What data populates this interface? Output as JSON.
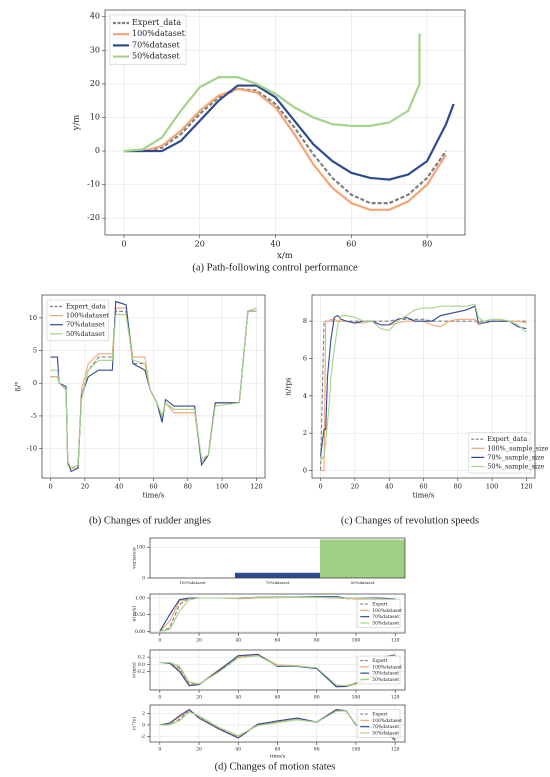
{
  "chart_data": [
    {
      "type": "line",
      "xlabel": "x/m",
      "ylabel": "y/m",
      "caption": "(a) Path-following control performance",
      "xlim": [
        -5,
        90
      ],
      "ylim": [
        -25,
        42
      ],
      "xticks": [
        0,
        20,
        40,
        60,
        80
      ],
      "yticks": [
        -20,
        -10,
        0,
        10,
        20,
        30,
        40
      ],
      "grid": true,
      "legend": "upper left",
      "series": [
        {
          "name": "Expert_data",
          "color": "#7f7f7f",
          "linestyle": "dashed",
          "x": [
            0,
            5,
            10,
            15,
            20,
            25,
            30,
            35,
            40,
            45,
            50,
            55,
            60,
            65,
            70,
            75,
            80,
            85
          ],
          "values": [
            0,
            0,
            1,
            5,
            11,
            16,
            18.5,
            18,
            14,
            7,
            -1,
            -8,
            -13,
            -15.5,
            -15.5,
            -13,
            -8,
            0
          ]
        },
        {
          "name": "100%dataset",
          "color": "#f4a574",
          "linestyle": "solid",
          "x": [
            0,
            5,
            10,
            15,
            20,
            25,
            30,
            35,
            40,
            45,
            50,
            55,
            60,
            65,
            70,
            75,
            80,
            85
          ],
          "values": [
            0,
            0,
            1.5,
            6,
            12,
            16.5,
            18.5,
            17.5,
            13,
            5,
            -4,
            -11,
            -15.5,
            -17.5,
            -17.5,
            -15,
            -10,
            -1
          ]
        },
        {
          "name": "70%dataset",
          "color": "#2f4b8f",
          "linestyle": "solid",
          "x": [
            0,
            5,
            10,
            15,
            20,
            25,
            30,
            35,
            40,
            45,
            50,
            55,
            60,
            65,
            70,
            75,
            80,
            85,
            87
          ],
          "values": [
            0,
            0,
            0,
            3,
            9,
            15,
            19.5,
            19.5,
            16,
            9,
            2,
            -3,
            -6.5,
            -8,
            -8.5,
            -7,
            -3,
            8,
            14
          ]
        },
        {
          "name": "50%dataset",
          "color": "#a6d38b",
          "linestyle": "solid",
          "x": [
            0,
            5,
            10,
            15,
            20,
            25,
            30,
            35,
            40,
            45,
            50,
            55,
            60,
            65,
            70,
            75,
            78,
            78
          ],
          "values": [
            0,
            0.5,
            4,
            12,
            19,
            22,
            22,
            20,
            17,
            13,
            10,
            8,
            7.5,
            7.5,
            8.5,
            12,
            20,
            35
          ]
        }
      ]
    },
    {
      "type": "line",
      "xlabel": "time/s",
      "ylabel": "δ/°",
      "caption": "(b) Changes of rudder angles",
      "xlim": [
        -5,
        125
      ],
      "ylim": [
        -14.5,
        13.5
      ],
      "xticks": [
        0,
        20,
        40,
        60,
        80,
        100,
        120
      ],
      "yticks": [
        -10,
        -5,
        0,
        5,
        10
      ],
      "grid": true,
      "legend": "upper left",
      "x": [
        0,
        4,
        5,
        9,
        10,
        12,
        16,
        18,
        22,
        28,
        36,
        38,
        44,
        48,
        55,
        58,
        62,
        65,
        67,
        72,
        84,
        88,
        92,
        96,
        110,
        115,
        120
      ],
      "series": [
        {
          "name": "Expert_data",
          "color": "#7f7f7f",
          "linestyle": "dashed",
          "values": [
            1,
            1,
            0,
            -1,
            -12,
            -13,
            -13,
            -2,
            2,
            4,
            4,
            11,
            11,
            3,
            3,
            -1,
            -3,
            -5,
            -3,
            -4,
            -4,
            -12,
            -11,
            -3,
            -3,
            11,
            11
          ]
        },
        {
          "name": "100%dataset",
          "color": "#f4a574",
          "linestyle": "solid",
          "values": [
            1,
            1,
            0,
            -1,
            -12.5,
            -13,
            -13,
            -1,
            3,
            4.5,
            4.5,
            11.5,
            11.5,
            4,
            4,
            -1,
            -3,
            -5.5,
            -3,
            -4.5,
            -4.5,
            -12,
            -11,
            -3,
            -3,
            11,
            11.5
          ]
        },
        {
          "name": "70%dataset",
          "color": "#2f4b8f",
          "linestyle": "solid",
          "values": [
            4,
            4,
            0,
            -0.5,
            -12,
            -13.5,
            -13,
            -2,
            1,
            2,
            2,
            12.5,
            12,
            3,
            2,
            -1,
            -3,
            -6,
            -2.5,
            -3.5,
            -3.5,
            -12.5,
            -11,
            -3,
            -3,
            11,
            11
          ]
        },
        {
          "name": "50%dataset",
          "color": "#a6d38b",
          "linestyle": "solid",
          "values": [
            2,
            2,
            0,
            -1,
            -12,
            -13,
            -12.5,
            -2.5,
            2,
            3.5,
            3.5,
            10.5,
            10.5,
            3.5,
            3,
            -1,
            -3,
            -5,
            -3,
            -4,
            -4,
            -11.5,
            -11,
            -3.5,
            -3,
            11,
            11
          ]
        }
      ]
    },
    {
      "type": "line",
      "xlabel": "time/s",
      "ylabel": "n/rps",
      "caption": "(c) Changes of revolution speeds",
      "xlim": [
        -5,
        125
      ],
      "ylim": [
        -0.4,
        9.4
      ],
      "xticks": [
        0,
        20,
        40,
        60,
        80,
        100,
        120
      ],
      "yticks": [
        0,
        2,
        4,
        6,
        8
      ],
      "grid": true,
      "legend": "lower right",
      "x": [
        0,
        2,
        3,
        4,
        5,
        6,
        8,
        10,
        12,
        15,
        20,
        25,
        30,
        35,
        40,
        45,
        50,
        55,
        60,
        65,
        70,
        75,
        80,
        85,
        90,
        92,
        95,
        100,
        105,
        110,
        115,
        120
      ],
      "series": [
        {
          "name": "Expert_data",
          "color": "#7f7f7f",
          "linestyle": "dashed",
          "values": [
            0,
            8,
            8,
            8,
            8,
            8,
            8,
            8,
            8,
            8,
            8,
            8,
            8,
            8,
            8,
            8.1,
            8.1,
            8.1,
            8.1,
            8,
            8,
            8,
            8,
            8,
            8,
            8,
            8,
            8,
            8,
            8,
            8,
            8
          ]
        },
        {
          "name": "100%_sample_size",
          "color": "#f4a574",
          "linestyle": "solid",
          "values": [
            0,
            0,
            8,
            8,
            8,
            8.1,
            8.1,
            8,
            8,
            8,
            7.9,
            7.9,
            8,
            7.8,
            7.8,
            7.9,
            8,
            8,
            8,
            7.8,
            7.7,
            8,
            8.1,
            8.1,
            8.1,
            7.8,
            7.9,
            8,
            8,
            8,
            8,
            7.9
          ]
        },
        {
          "name": "70%_sample_size",
          "color": "#2f4b8f",
          "linestyle": "solid",
          "values": [
            0.8,
            2.2,
            2.2,
            5,
            6,
            7,
            8.2,
            8.3,
            8.1,
            8,
            7.9,
            8,
            8,
            7.8,
            7.8,
            8.1,
            8.2,
            8,
            8,
            8,
            8.3,
            8.4,
            8.5,
            8.6,
            8.8,
            7.9,
            7.9,
            8,
            8,
            8,
            7.7,
            7.6
          ]
        },
        {
          "name": "50%_sample_size",
          "color": "#a6d38b",
          "linestyle": "solid",
          "values": [
            0.5,
            0.8,
            1.5,
            2.5,
            3.5,
            5,
            6.5,
            7.8,
            8.3,
            8.3,
            8.2,
            8,
            8,
            7.6,
            7.5,
            8,
            8.3,
            8.6,
            8.7,
            8.7,
            8.8,
            8.8,
            8.8,
            8.8,
            8.9,
            8.2,
            8,
            8.1,
            8.1,
            8,
            7.8,
            7.4
          ]
        }
      ]
    },
    {
      "type": "bar",
      "ylabel": "variance",
      "categories": [
        "100%dataset",
        "70%dataset",
        "50%dataset"
      ],
      "values": [
        0,
        17,
        125
      ],
      "colors": [
        "#f4a574",
        "#2f4b8f",
        "#9fd086"
      ],
      "ylim": [
        0,
        130
      ],
      "yticks": [
        0,
        100
      ],
      "grid": true
    },
    {
      "type": "line",
      "ylabel": "u(m/s)",
      "xlim": [
        -5,
        125
      ],
      "ylim": [
        -0.05,
        1.12
      ],
      "xticks": [
        0,
        20,
        40,
        60,
        80,
        100,
        120
      ],
      "yticks": [
        {
          "value": 0,
          "label": "0.00"
        },
        {
          "value": 0.5,
          "label": "0.50"
        },
        {
          "value": 1,
          "label": "1.00"
        }
      ],
      "grid": true,
      "legend": "center right",
      "x": [
        0,
        5,
        10,
        15,
        20,
        30,
        40,
        50,
        60,
        70,
        80,
        90,
        95,
        100,
        110,
        115,
        120
      ],
      "series": [
        {
          "name": "Expert",
          "color": "#7f7f7f",
          "linestyle": "dashed",
          "values": [
            0,
            0.1,
            0.8,
            1,
            1,
            1,
            1,
            1.02,
            1.02,
            1.02,
            1.03,
            1,
            0.98,
            0.98,
            1,
            0.98,
            0.95
          ]
        },
        {
          "name": "100%dataset",
          "color": "#f4a574",
          "linestyle": "solid",
          "values": [
            0,
            0.3,
            0.9,
            1,
            1,
            1,
            0.98,
            1,
            1.01,
            1.02,
            1.02,
            1,
            0.99,
            0.97,
            0.97,
            0.98,
            0.96
          ]
        },
        {
          "name": "70%dataset",
          "color": "#2f4b8f",
          "linestyle": "solid",
          "values": [
            0,
            0.5,
            0.95,
            1,
            1,
            1,
            1,
            1.02,
            1.03,
            1.03,
            1.04,
            1.04,
            1,
            1,
            1,
            0.99,
            0.96
          ]
        },
        {
          "name": "50%dataset",
          "color": "#a6d38b",
          "linestyle": "solid",
          "values": [
            0,
            0.05,
            0.6,
            0.95,
            1,
            1,
            1,
            1.02,
            1.02,
            1.02,
            1.02,
            1.01,
            1,
            1,
            0.98,
            0.97,
            0.95
          ]
        }
      ]
    },
    {
      "type": "line",
      "ylabel": "v(m/s)",
      "xlim": [
        -5,
        125
      ],
      "ylim": [
        -0.72,
        0.4
      ],
      "xticks": [
        0,
        20,
        40,
        60,
        80,
        100,
        120
      ],
      "yticks": [
        -0.2,
        {
          "value": 0,
          "label": "0.0"
        },
        0.2
      ],
      "grid": true,
      "legend": "center right",
      "x": [
        0,
        5,
        10,
        15,
        20,
        30,
        40,
        50,
        60,
        70,
        80,
        90,
        95,
        100,
        110,
        115,
        120
      ],
      "series": [
        {
          "name": "Expert",
          "color": "#7f7f7f",
          "linestyle": "dashed",
          "values": [
            0.05,
            0.05,
            -0.1,
            -0.55,
            -0.55,
            -0.2,
            0.2,
            0.25,
            -0.05,
            -0.05,
            -0.1,
            -0.6,
            -0.6,
            -0.55,
            -0.3,
            0.2,
            0.25
          ]
        },
        {
          "name": "100%dataset",
          "color": "#f4a574",
          "linestyle": "solid",
          "values": [
            0.05,
            0.04,
            -0.15,
            -0.58,
            -0.56,
            -0.15,
            0.22,
            0.27,
            -0.02,
            -0.04,
            -0.12,
            -0.62,
            -0.6,
            -0.52,
            -0.28,
            0.22,
            0.27
          ]
        },
        {
          "name": "70%dataset",
          "color": "#2f4b8f",
          "linestyle": "solid",
          "values": [
            0.05,
            0.03,
            -0.2,
            -0.6,
            -0.57,
            -0.18,
            0.24,
            0.28,
            -0.06,
            -0.06,
            -0.12,
            -0.63,
            -0.62,
            -0.55,
            -0.3,
            0.21,
            0.26
          ]
        },
        {
          "name": "50%dataset",
          "color": "#a6d38b",
          "linestyle": "solid",
          "values": [
            0.05,
            0.05,
            -0.05,
            -0.5,
            -0.55,
            -0.22,
            0.18,
            0.24,
            -0.04,
            -0.05,
            -0.1,
            -0.58,
            -0.6,
            -0.56,
            -0.32,
            0.18,
            0.24
          ]
        }
      ]
    },
    {
      "type": "line",
      "xlabel": "time/s",
      "ylabel": "r(°/s)",
      "caption": "(d) Changes of motion states",
      "xlim": [
        -5,
        125
      ],
      "ylim": [
        -3,
        3.5
      ],
      "xticks": [
        0,
        20,
        40,
        60,
        80,
        100,
        120
      ],
      "yticks": [
        -2,
        0,
        2
      ],
      "grid": true,
      "legend": "center right",
      "x": [
        0,
        5,
        10,
        15,
        20,
        30,
        40,
        50,
        60,
        70,
        80,
        90,
        95,
        100,
        110,
        115,
        120
      ],
      "series": [
        {
          "name": "Expert",
          "color": "#7f7f7f",
          "linestyle": "dashed",
          "values": [
            0,
            0,
            1,
            2.5,
            1.5,
            -0.5,
            -2,
            0,
            0.5,
            1,
            0.5,
            2.5,
            2.5,
            0,
            -0.5,
            -1,
            -2.5
          ]
        },
        {
          "name": "100%dataset",
          "color": "#f4a574",
          "linestyle": "solid",
          "values": [
            0,
            0.2,
            1.4,
            2.6,
            1.3,
            -0.6,
            -2.2,
            0.2,
            0.6,
            1.1,
            0.4,
            2.6,
            2.4,
            0.1,
            -0.5,
            -1.1,
            -2.6
          ]
        },
        {
          "name": "70%dataset",
          "color": "#2f4b8f",
          "linestyle": "solid",
          "values": [
            0,
            0.3,
            1.6,
            2.7,
            1.2,
            -0.7,
            -2.3,
            0.1,
            0.7,
            1.2,
            0.5,
            2.7,
            2.5,
            0,
            -0.6,
            -1.2,
            -2.7
          ]
        },
        {
          "name": "50%dataset",
          "color": "#a6d38b",
          "linestyle": "solid",
          "values": [
            0,
            0,
            0.7,
            2.3,
            1.6,
            -0.4,
            -1.9,
            -0.1,
            0.4,
            0.9,
            0.5,
            2.4,
            2.5,
            0.1,
            -0.4,
            -0.9,
            -2.4
          ]
        }
      ]
    }
  ]
}
